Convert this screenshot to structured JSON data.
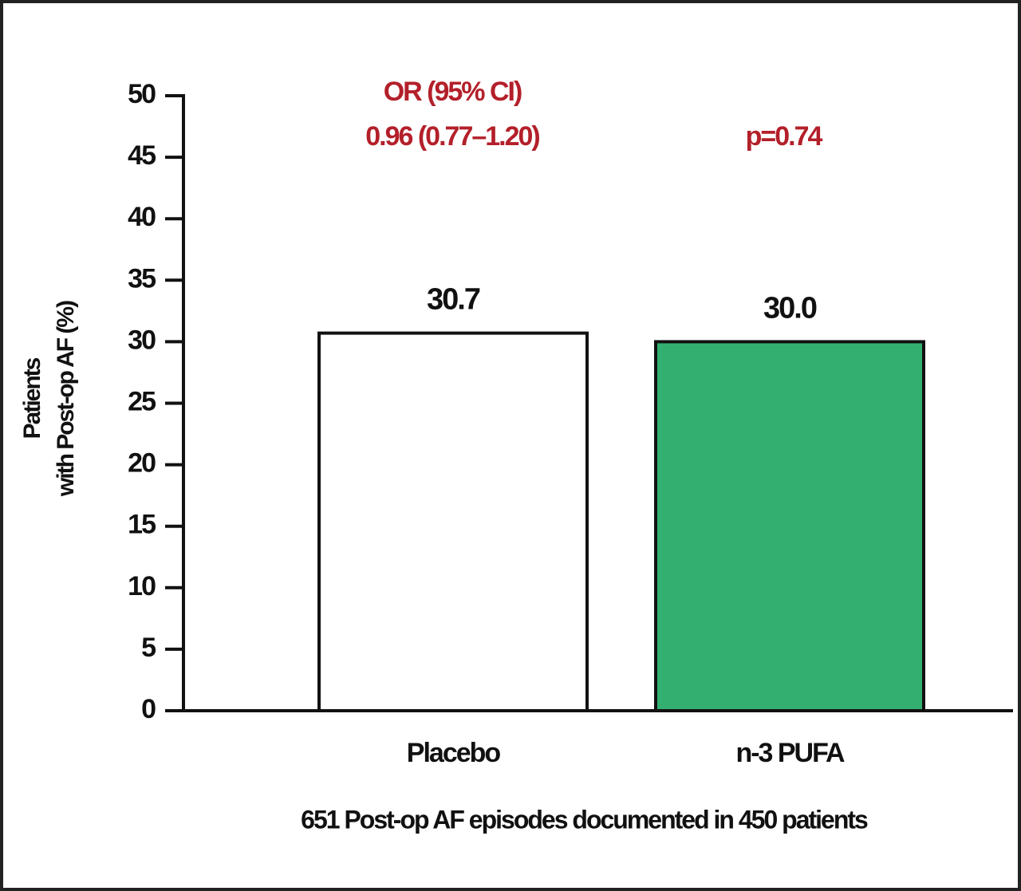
{
  "chart_data": {
    "type": "bar",
    "ylabel": [
      "Patients",
      "with Post-op AF (%)"
    ],
    "annotations": [
      "OR (95% CI)",
      "0.96 (0.77–1.20)",
      "p=0.74"
    ],
    "categories": [
      "Placebo",
      "n-3 PUFA"
    ],
    "values": [
      30.7,
      30.0
    ],
    "value_labels": [
      "30.7",
      "30.0"
    ],
    "colors": [
      "#ffffff",
      "#33b070"
    ],
    "ylim": [
      0,
      50
    ],
    "yticks": [
      0,
      5,
      10,
      15,
      20,
      25,
      30,
      35,
      40,
      45,
      50
    ],
    "footnote": "651 Post-op AF episodes documented in 450 patients"
  }
}
